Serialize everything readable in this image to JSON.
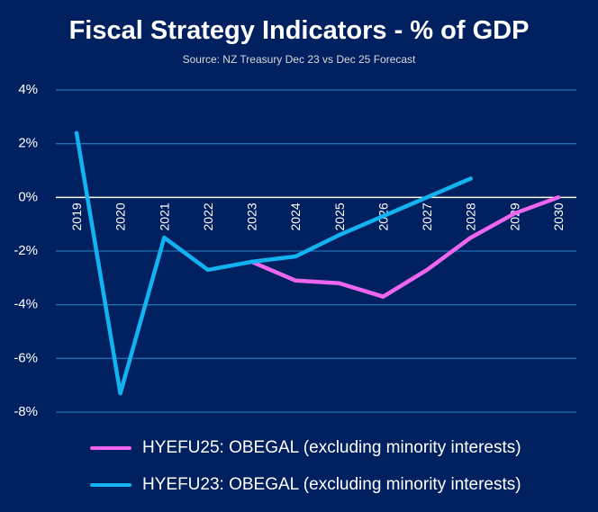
{
  "chart_data": {
    "type": "line",
    "title": "Fiscal Strategy Indicators - % of GDP",
    "subtitle": "Source: NZ Treasury Dec 23 vs Dec 25 Forecast",
    "xlabel": "",
    "ylabel": "",
    "categories": [
      "2019",
      "2020",
      "2021",
      "2022",
      "2023",
      "2024",
      "2025",
      "2026",
      "2027",
      "2028",
      "2029",
      "2030"
    ],
    "y_ticks": [
      "4%",
      "2%",
      "0%",
      "-2%",
      "-4%",
      "-6%",
      "-8%"
    ],
    "ylim": [
      -8,
      4
    ],
    "series": [
      {
        "name": "HYEFU25: OBEGAL (excluding minority interests)",
        "color": "#ee66ee",
        "values": [
          null,
          null,
          null,
          null,
          -2.4,
          -3.1,
          -3.2,
          -3.7,
          -2.7,
          -1.5,
          -0.6,
          0.0
        ]
      },
      {
        "name": "HYEFU23: OBEGAL (excluding minority interests)",
        "color": "#12b3f0",
        "values": [
          2.4,
          -7.3,
          -1.5,
          -2.7,
          -2.4,
          -2.2,
          -1.4,
          -0.7,
          0.0,
          0.7,
          null,
          null
        ]
      }
    ]
  },
  "legend": [
    {
      "label": "HYEFU25: OBEGAL (excluding minority interests)",
      "color": "#ee66ee"
    },
    {
      "label": "HYEFU23: OBEGAL (excluding minority interests)",
      "color": "#12b3f0"
    }
  ]
}
